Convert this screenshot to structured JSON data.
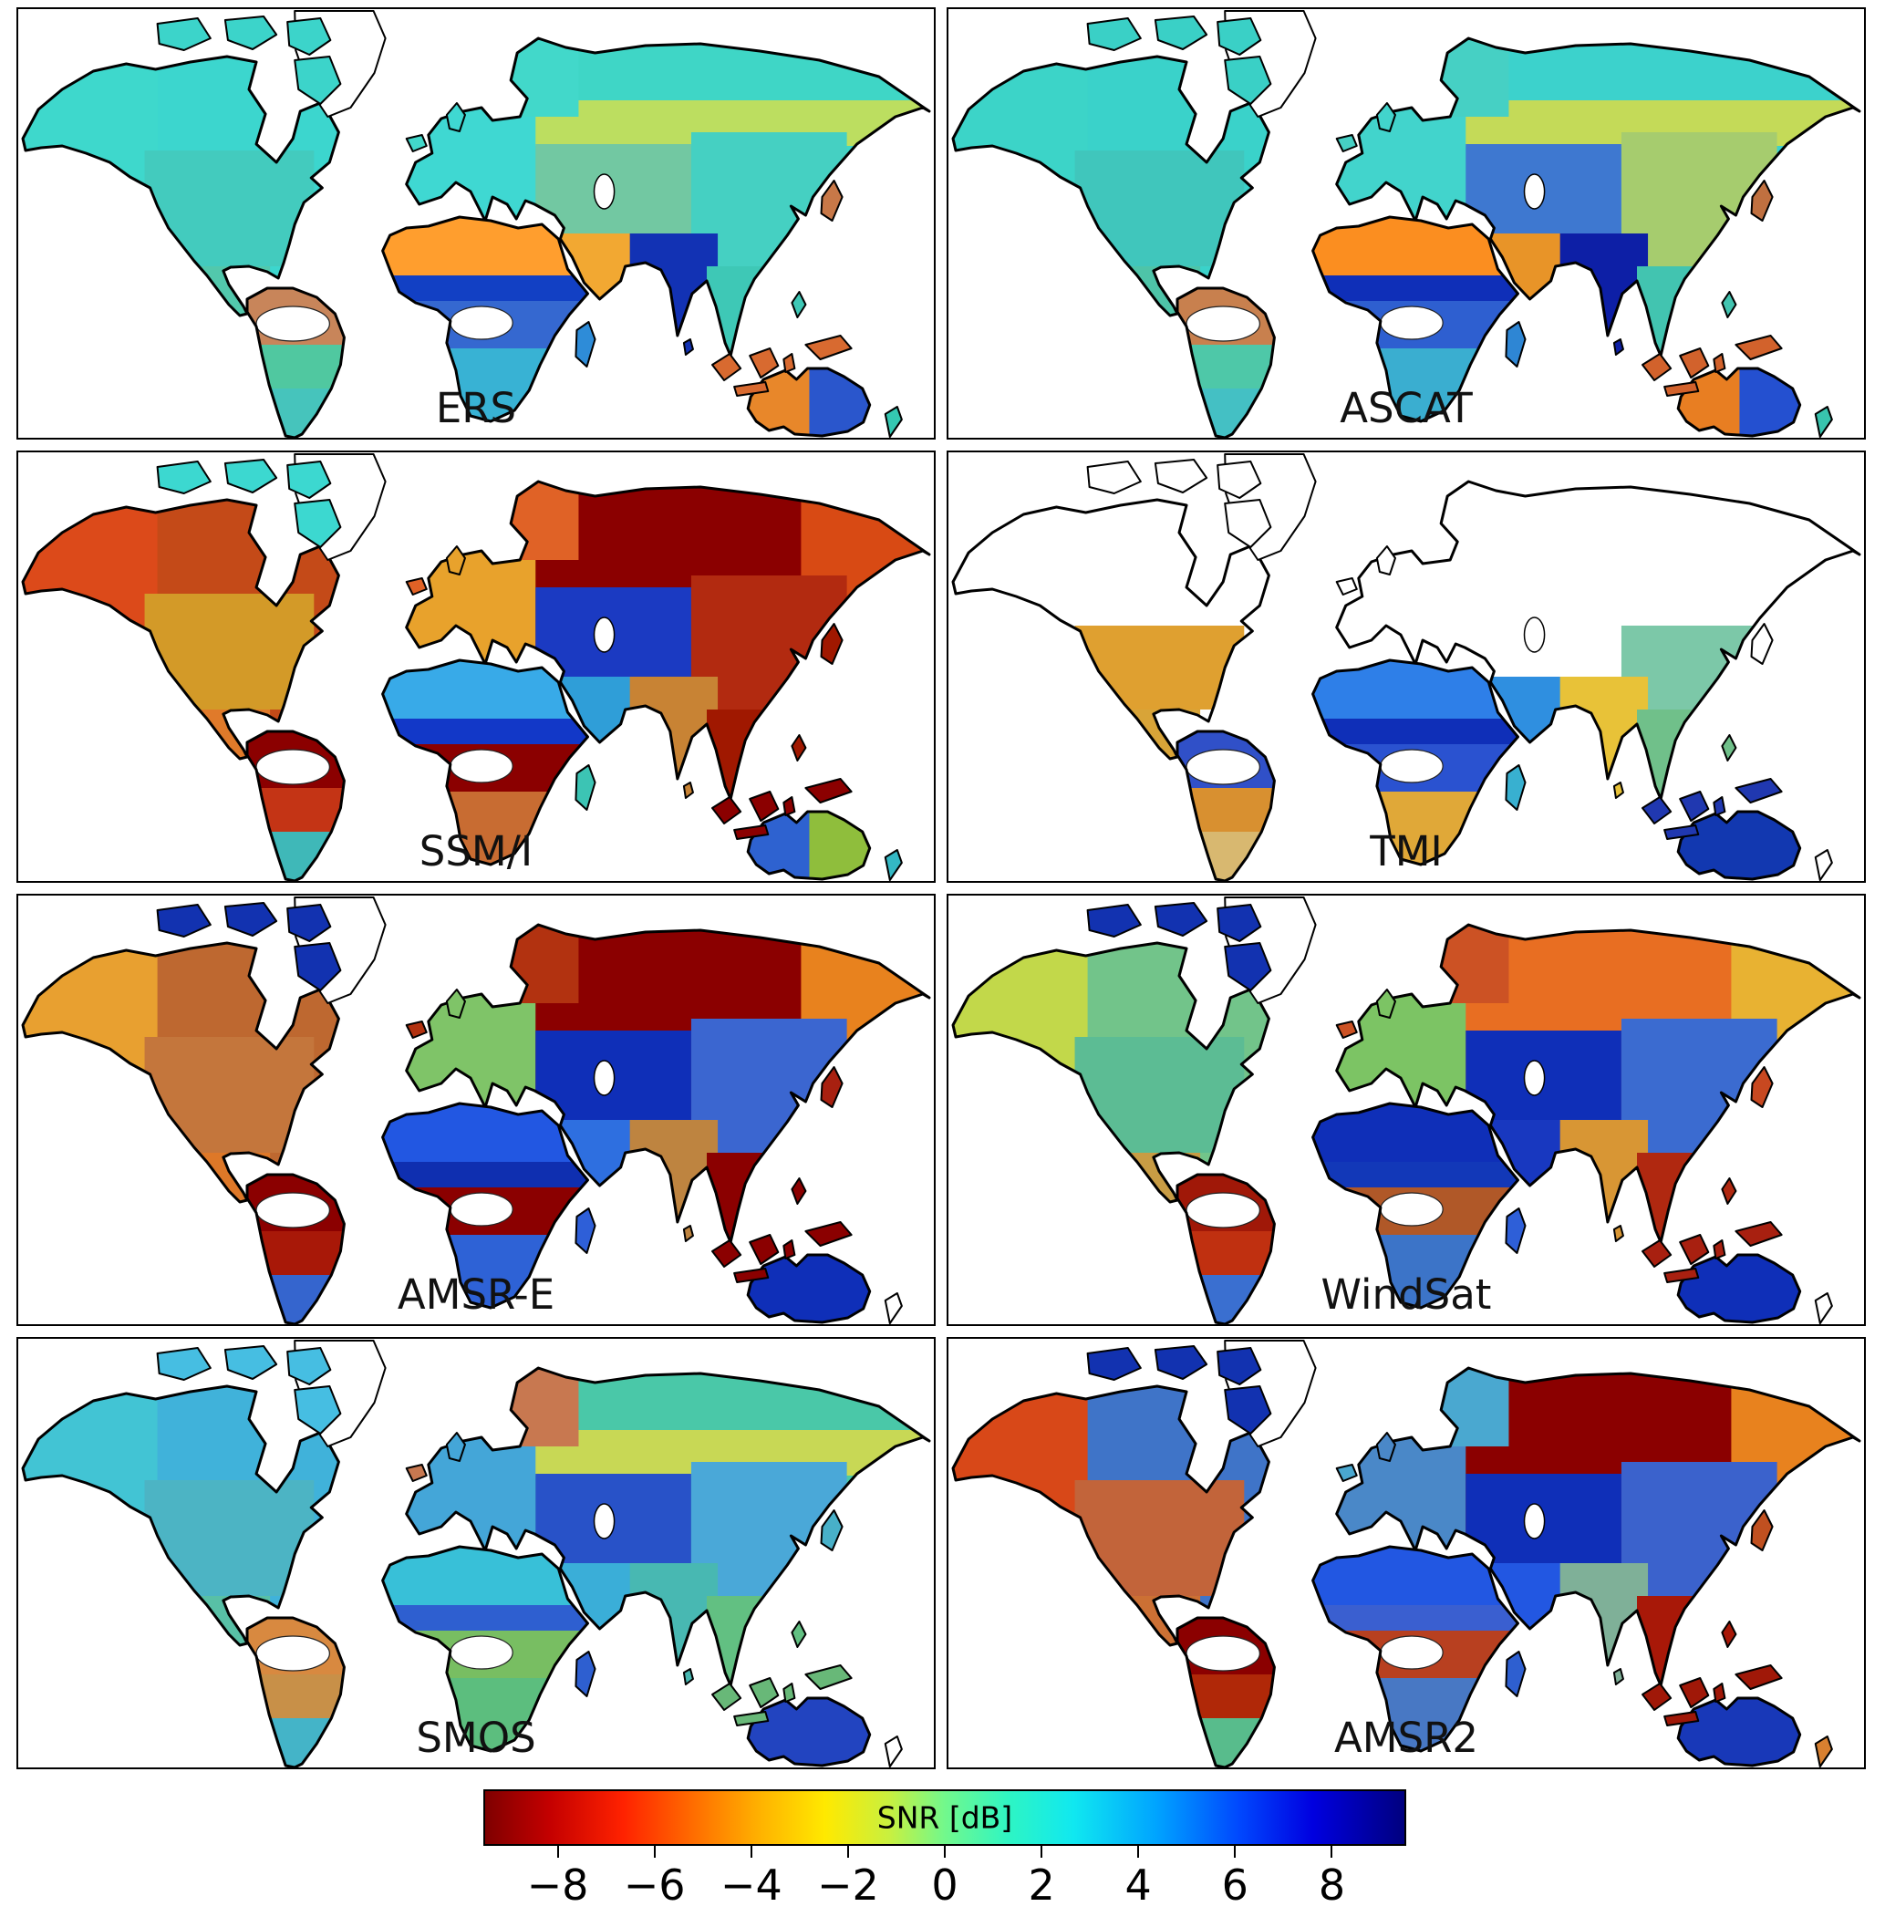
{
  "figure": {
    "background": "#ffffff",
    "border_color": "#000000"
  },
  "panels": [
    {
      "id": "ers",
      "label": "ERS",
      "region_colors": {
        "greenland": "#FFFFFF",
        "arctic_islands": "#3CD4CA",
        "alaska": "#3ED8CC",
        "canada": "#3CD6CE",
        "us": "#43CBBE",
        "mexico": "#52C8AC",
        "sa_north": "#C8855A",
        "sa_central": "#50C8A0",
        "sa_south": "#46C4BC",
        "amazon_blob": "#FFFFFF",
        "europe": "#3FD8D2",
        "scandinavia": "#42D8CA",
        "sahara": "#FF9E2E",
        "sahel": "#1240C4",
        "africa_central": "#3568D0",
        "congo_blob": "#FFFFFF",
        "africa_south": "#38B2D4",
        "madagascar": "#2E8CD8",
        "arabia": "#F2A832",
        "siberia": "#3FD6C6",
        "siberia_south": "#BCDE60",
        "siberia_east": null,
        "central_asia": "#72C8A2",
        "india": "#1232B4",
        "china": "#45D0C2",
        "se_asia": "#3EC8B6",
        "indonesia": "#D86A30",
        "japan": "#C87848",
        "australia": "#2A56CC",
        "australia_west": "#E8872A",
        "new_zealand": "#34C8B2",
        "nodata_north": null
      }
    },
    {
      "id": "ascat",
      "label": "ASCAT",
      "region_colors": {
        "greenland": "#FFFFFF",
        "arctic_islands": "#3AD0C6",
        "alaska": "#3CD4C8",
        "canada": "#3AD2CA",
        "us": "#40C6BC",
        "mexico": "#4EC4A8",
        "sa_north": "#C8804E",
        "sa_central": "#4EC8A8",
        "sa_south": "#44C0C4",
        "amazon_blob": "#FFFFFF",
        "europe": "#42D4CC",
        "scandinavia": "#46D0C4",
        "sahara": "#FB8E20",
        "sahel": "#0F2FB8",
        "africa_central": "#2E5FD0",
        "congo_blob": "#FFFFFF",
        "africa_south": "#3AAED0",
        "madagascar": "#2E86D4",
        "arabia": "#E89428",
        "siberia": "#3CD2CC",
        "siberia_south": "#C4DA58",
        "siberia_east": null,
        "central_asia": "#3E78D0",
        "india": "#0D1FA6",
        "china": "#A6CC6E",
        "se_asia": "#42C4B0",
        "indonesia": "#D2622C",
        "japan": "#C07040",
        "australia": "#2450D0",
        "australia_west": "#E87E22",
        "new_zealand": "#38C4AE",
        "nodata_north": null
      }
    },
    {
      "id": "ssmi",
      "label": "SSM/I",
      "region_colors": {
        "greenland": "#FFFFFF",
        "arctic_islands": "#3CD8D0",
        "alaska": "#DC4A1A",
        "canada": "#C44A18",
        "us": "#D39A28",
        "mexico": "#E07A2A",
        "sa_north": "#8B0000",
        "sa_central": "#C43415",
        "sa_south": "#3FB8B8",
        "amazon_blob": "#FFFFFF",
        "europe": "#E8A22C",
        "scandinavia": "#E06226",
        "sahara": "#38AAE8",
        "sahel": "#1238C8",
        "africa_central": "#8B0000",
        "congo_blob": "#FFFFFF",
        "africa_south": "#C86C32",
        "madagascar": "#3CC4B4",
        "arabia": "#2F9ED8",
        "siberia": "#8B0000",
        "siberia_south": null,
        "siberia_east": "#D84A14",
        "central_asia": "#1B3AC2",
        "india": "#C88334",
        "china": "#B22A10",
        "se_asia": "#A01800",
        "indonesia": "#8B0000",
        "japan": "#A01800",
        "australia": "#8FBE3C",
        "australia_west": "#2E62D0",
        "new_zealand": "#34B8C4",
        "nodata_north": null
      }
    },
    {
      "id": "tmi",
      "label": "TMI",
      "region_colors": {
        "greenland": "#FFFFFF",
        "arctic_islands": "#FFFFFF",
        "alaska": "#FFFFFF",
        "canada": "#FFFFFF",
        "us": "#DFA030",
        "mexico": "#D8A438",
        "sa_north": "#3050C8",
        "sa_central": "#D89030",
        "sa_south": "#D8B870",
        "amazon_blob": "#FFFFFF",
        "europe": "#FFFFFF",
        "scandinavia": "#FFFFFF",
        "sahara": "#2E7FE8",
        "sahel": "#0F2FB8",
        "africa_central": "#2A52D0",
        "congo_blob": "#FFFFFF",
        "africa_south": "#E0A838",
        "madagascar": "#38B0D0",
        "arabia": "#2F8FE0",
        "siberia": "#FFFFFF",
        "siberia_south": null,
        "siberia_east": null,
        "central_asia": "#FFFFFF",
        "india": "#E8C238",
        "china": "#7CC8A8",
        "se_asia": "#70C08A",
        "indonesia": "#2038B0",
        "japan": "#FFFFFF",
        "australia": "#1238B0",
        "australia_west": null,
        "new_zealand": "#FFFFFF",
        "nodata_north": "#FFFFFF"
      }
    },
    {
      "id": "amsre",
      "label": "AMSR-E",
      "region_colors": {
        "greenland": "#FFFFFF",
        "arctic_islands": "#1232B0",
        "alaska": "#E8A030",
        "canada": "#BE6830",
        "us": "#C4763C",
        "mexico": "#DE7828",
        "sa_north": "#8B0000",
        "sa_central": "#A81808",
        "sa_south": "#3565CE",
        "amazon_blob": "#FFFFFF",
        "europe": "#7FC468",
        "scandinavia": "#B23210",
        "sahara": "#2257E2",
        "sahel": "#0F2FB0",
        "africa_central": "#8B0000",
        "congo_blob": "#FFFFFF",
        "africa_south": "#2E62D6",
        "madagascar": "#2E5FD8",
        "arabia": "#2E6FE0",
        "siberia": "#8B0000",
        "siberia_south": null,
        "siberia_east": "#E8821E",
        "central_asia": "#0F2FB8",
        "india": "#BE8440",
        "china": "#3B66D0",
        "se_asia": "#8B0000",
        "indonesia": "#8B0000",
        "japan": "#A82010",
        "australia": "#0F2FB8",
        "australia_west": null,
        "new_zealand": "#FFFFFF",
        "nodata_north": null
      }
    },
    {
      "id": "windsat",
      "label": "WindSat",
      "region_colors": {
        "greenland": "#FFFFFF",
        "arctic_islands": "#1232B0",
        "alaska": "#C2D84A",
        "canada": "#72C48A",
        "us": "#5CBC94",
        "mexico": "#C89C44",
        "sa_north": "#A01808",
        "sa_central": "#C03010",
        "sa_south": "#3A6FD0",
        "amazon_blob": "#FFFFFF",
        "europe": "#7CC464",
        "scandinavia": "#CC5224",
        "sahara": "#0F2FB8",
        "sahel": "#1238B8",
        "africa_central": "#B05828",
        "congo_blob": "#FFFFFF",
        "africa_south": "#3C74C8",
        "madagascar": "#2E5FD8",
        "arabia": "#1838C0",
        "siberia": "#E86E22",
        "siberia_south": null,
        "siberia_east": "#E8B232",
        "central_asia": "#0F2FB8",
        "india": "#D89634",
        "china": "#3B6BD0",
        "se_asia": "#B02810",
        "indonesia": "#A82010",
        "japan": "#C84820",
        "australia": "#0F2FB8",
        "australia_west": null,
        "new_zealand": "#FFFFFF",
        "nodata_north": null
      }
    },
    {
      "id": "smos",
      "label": "SMOS",
      "region_colors": {
        "greenland": "#FFFFFF",
        "arctic_islands": "#46BEE2",
        "alaska": "#42C4D4",
        "canada": "#40B2DA",
        "us": "#4CB4C4",
        "mexico": "#58C0A6",
        "sa_north": "#D88940",
        "sa_central": "#C89048",
        "sa_south": "#44B4C8",
        "amazon_blob": "#FFFFFF",
        "europe": "#44A6D8",
        "scandinavia": "#C87850",
        "sahara": "#38C0D8",
        "sahel": "#2E5FD0",
        "africa_central": "#78BE62",
        "congo_blob": "#FFFFFF",
        "africa_south": "#5CBE7E",
        "madagascar": "#2E5FD0",
        "arabia": "#3AAED8",
        "siberia": "#4AC8A8",
        "siberia_south": "#C8D855",
        "siberia_east": null,
        "central_asia": "#2852C8",
        "india": "#48B8B2",
        "china": "#4AA8D8",
        "se_asia": "#62C082",
        "indonesia": "#68B878",
        "japan": "#48B0C8",
        "australia": "#2244C0",
        "australia_west": null,
        "new_zealand": "#FFFFFF",
        "nodata_north": null
      }
    },
    {
      "id": "amsr2",
      "label": "AMSR2",
      "region_colors": {
        "greenland": "#FFFFFF",
        "arctic_islands": "#1232B0",
        "alaska": "#D84818",
        "canada": "#3F74C8",
        "us": "#C2643A",
        "mexico": "#CC7034",
        "sa_north": "#8B0000",
        "sa_central": "#B02808",
        "sa_south": "#58BC8C",
        "amazon_blob": "#FFFFFF",
        "europe": "#4A88C8",
        "scandinavia": "#4AA8D0",
        "sahara": "#2257E2",
        "sahel": "#3A5FD0",
        "africa_central": "#B84020",
        "congo_blob": "#FFFFFF",
        "africa_south": "#4878C4",
        "madagascar": "#2E5FD0",
        "arabia": "#2257E2",
        "siberia": "#8B0000",
        "siberia_south": null,
        "siberia_east": "#E8821E",
        "central_asia": "#0F2FB8",
        "india": "#7FB098",
        "china": "#3B62CC",
        "se_asia": "#A81808",
        "indonesia": "#A01808",
        "japan": "#C05020",
        "australia": "#1838B8",
        "australia_west": null,
        "new_zealand": "#D88030",
        "nodata_north": null
      }
    }
  ],
  "colorbar": {
    "label": "SNR [dB]",
    "tick_labels": [
      "−8",
      "−6",
      "−4",
      "−2",
      "0",
      "2",
      "4",
      "6",
      "8"
    ],
    "tick_values": [
      -8,
      -6,
      -4,
      -2,
      0,
      2,
      4,
      6,
      8
    ],
    "value_min": -9.5,
    "value_max": 9.5,
    "gradient_stops": [
      [
        "#7F0000",
        0
      ],
      [
        "#C40000",
        7
      ],
      [
        "#FF2200",
        15
      ],
      [
        "#FF7000",
        23
      ],
      [
        "#FFB300",
        30
      ],
      [
        "#FFE900",
        37
      ],
      [
        "#C8F040",
        44
      ],
      [
        "#72F88C",
        50
      ],
      [
        "#2EF5C4",
        57
      ],
      [
        "#10E8F0",
        64
      ],
      [
        "#00A4FF",
        73
      ],
      [
        "#0048FE",
        82
      ],
      [
        "#0000E0",
        90
      ],
      [
        "#00007F",
        100
      ]
    ]
  },
  "chart_data": {
    "type": "heatmap",
    "title": "Global SNR maps per satellite sensor",
    "layout": "4 rows x 2 columns of world maps sharing one horizontal colorbar at bottom",
    "colorbar": {
      "label": "SNR [dB]",
      "tick_values": [
        -8,
        -6,
        -4,
        -2,
        0,
        2,
        4,
        6,
        8
      ],
      "range": [
        -9.5,
        9.5
      ],
      "colormap": "reversed jet: dark red = low SNR (-9), dark blue = high SNR (+9)"
    },
    "panels": [
      {
        "name": "ERS",
        "summary": "Mostly cyan/green (0-2 dB); Sahara and Arabia orange (-5); Sahel and India dark blue (6-8); Australia orange west / blue east; Amazon and Congo basins blank (no data)"
      },
      {
        "name": "ASCAT",
        "summary": "Like ERS with more red speckle; Sahara orange; India navy (8); central Asia blue patches; Sahel navy"
      },
      {
        "name": "SSM/I",
        "summary": "Dark red (-9) over Siberia, west Canada, Amazon, Congo ring, SE Asia; Sahara light blue; central Asia dark blue; Australia green/yellow with blue west"
      },
      {
        "name": "TMI",
        "summary": "Data only within about +/-38 deg latitude, blank white outlines above; Sahara blue, Sahel navy; India yellow; Australia dark blue; Brazil yellow/orange"
      },
      {
        "name": "AMSR-E",
        "summary": "Dark red Siberia, Amazon, SE Asia; navy central Asia, Sahara band, Australia; orange Alaska/US/Mexico; blue southern Africa; green Europe"
      },
      {
        "name": "WindSat",
        "summary": "Orange/red Siberia; navy Sahara, central Asia, Arabia, Australia; green/cyan Canada, US, Europe; dark red Amazon and SE Asia"
      },
      {
        "name": "SMOS",
        "summary": "Mostly cyan/light blue (0-2); yellow band central Siberia; dark blue Australia and Sahel; orange around Amazon and Brazil; red speckle Canada and Scandinavia"
      },
      {
        "name": "AMSR2",
        "summary": "Dark red Siberia, Amazon, SE Asia; orange NE Siberia, Alaska, US; navy central Asia and Australia; blue Sahara, China, Canada, Europe"
      }
    ]
  }
}
